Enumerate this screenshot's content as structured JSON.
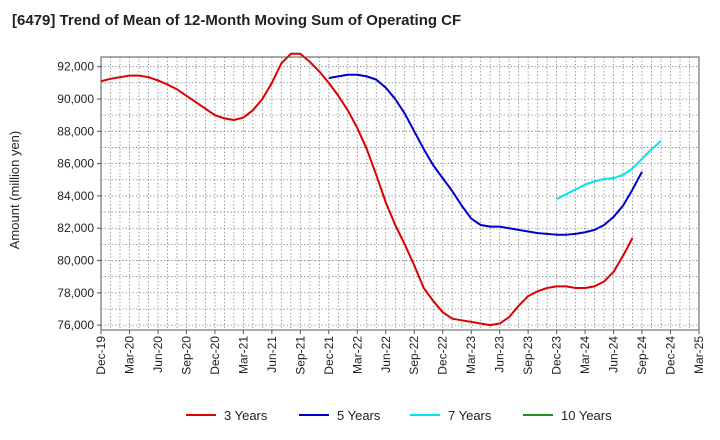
{
  "chart_data": {
    "type": "line",
    "title": "[6479]  Trend of Mean of 12-Month Moving Sum of Operating CF",
    "xlabel": "",
    "ylabel": "Amount (million yen)",
    "ylim": [
      75700,
      92600
    ],
    "y_ticks": [
      76000,
      78000,
      80000,
      82000,
      84000,
      86000,
      88000,
      90000,
      92000
    ],
    "y_tick_labels": [
      "76,000",
      "78,000",
      "80,000",
      "82,000",
      "84,000",
      "86,000",
      "88,000",
      "90,000",
      "92,000"
    ],
    "x_tick_labels": [
      "Dec-19",
      "Mar-20",
      "Jun-20",
      "Sep-20",
      "Dec-20",
      "Mar-21",
      "Jun-21",
      "Sep-21",
      "Dec-21",
      "Mar-22",
      "Jun-22",
      "Sep-22",
      "Dec-22",
      "Mar-23",
      "Jun-23",
      "Sep-23",
      "Dec-23",
      "Mar-24",
      "Jun-24",
      "Sep-24",
      "Dec-24",
      "Mar-25"
    ],
    "x_index_range": [
      0,
      63
    ],
    "grid": true,
    "legend_position": "bottom",
    "series": [
      {
        "name": "3 Years",
        "color": "#dd0000",
        "start_index": 0,
        "values": [
          91100,
          91250,
          91350,
          91450,
          91450,
          91350,
          91150,
          90900,
          90600,
          90200,
          89800,
          89400,
          89000,
          88800,
          88700,
          88850,
          89300,
          90000,
          91000,
          92200,
          92800,
          92800,
          92300,
          91700,
          91000,
          90200,
          89300,
          88200,
          86900,
          85300,
          83600,
          82200,
          81000,
          79700,
          78300,
          77500,
          76800,
          76400,
          76300,
          76200,
          76100,
          76000,
          76100,
          76500,
          77200,
          77800,
          78100,
          78300,
          78400,
          78400,
          78300,
          78300,
          78400,
          78700,
          79300,
          80300,
          81400
        ]
      },
      {
        "name": "5 Years",
        "color": "#0000cc",
        "start_index": 24,
        "values": [
          91300,
          91400,
          91500,
          91500,
          91400,
          91200,
          90700,
          90000,
          89100,
          88000,
          86900,
          85900,
          85100,
          84300,
          83400,
          82600,
          82200,
          82100,
          82100,
          82000,
          81900,
          81800,
          81700,
          81650,
          81600,
          81600,
          81650,
          81750,
          81900,
          82200,
          82700,
          83400,
          84400,
          85500
        ]
      },
      {
        "name": "7 Years",
        "color": "#00e5ee",
        "start_index": 48,
        "values": [
          83800,
          84100,
          84400,
          84700,
          84900,
          85050,
          85100,
          85300,
          85700,
          86300,
          86900,
          87400
        ]
      },
      {
        "name": "10 Years",
        "color": "#228b22",
        "start_index": 0,
        "values": []
      }
    ]
  }
}
